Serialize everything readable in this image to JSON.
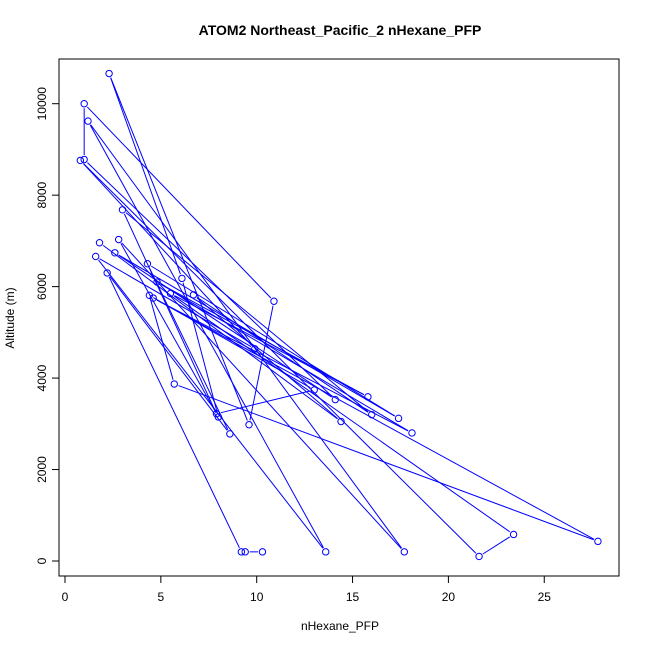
{
  "chart_data": {
    "type": "line",
    "title": "ATOM2 Northeast_Pacific_2 nHexane_PFP",
    "xlabel": "nHexane_PFP",
    "ylabel": "Altitude (m)",
    "xlim": [
      0,
      28
    ],
    "ylim": [
      0,
      10700
    ],
    "xticks": [
      0,
      5,
      10,
      15,
      20,
      25
    ],
    "yticks": [
      0,
      2000,
      4000,
      6000,
      8000,
      10000
    ],
    "grid": false,
    "series": [
      {
        "color": "#0000ff",
        "marker": "open-circle",
        "points": [
          [
            10.3,
            200
          ],
          [
            9.4,
            200
          ],
          [
            9.2,
            200
          ],
          [
            2.2,
            6300
          ],
          [
            8.6,
            2780
          ],
          [
            4.3,
            6500
          ],
          [
            17.4,
            3120
          ],
          [
            2.6,
            6740
          ],
          [
            14.1,
            3530
          ],
          [
            1.0,
            8780
          ],
          [
            1.0,
            10000
          ],
          [
            10.9,
            5680
          ],
          [
            9.6,
            2980
          ],
          [
            2.3,
            10660
          ],
          [
            6.1,
            6180
          ],
          [
            8.0,
            3150
          ],
          [
            2.8,
            7030
          ],
          [
            17.7,
            200
          ],
          [
            1.2,
            9620
          ],
          [
            13.6,
            200
          ],
          [
            1.6,
            6660
          ],
          [
            9.9,
            4640
          ],
          [
            0.8,
            8760
          ],
          [
            21.6,
            100
          ],
          [
            23.4,
            580
          ],
          [
            5.5,
            5850
          ],
          [
            15.8,
            3590
          ],
          [
            4.8,
            6100
          ],
          [
            18.1,
            2800
          ],
          [
            4.6,
            5750
          ],
          [
            27.8,
            430
          ],
          [
            5.7,
            3870
          ],
          [
            4.4,
            5810
          ],
          [
            13.0,
            3740
          ],
          [
            7.9,
            3220
          ],
          [
            3.0,
            7680
          ],
          [
            16.0,
            3200
          ],
          [
            6.7,
            5820
          ],
          [
            14.4,
            3050
          ],
          [
            1.8,
            6960
          ]
        ]
      }
    ]
  }
}
